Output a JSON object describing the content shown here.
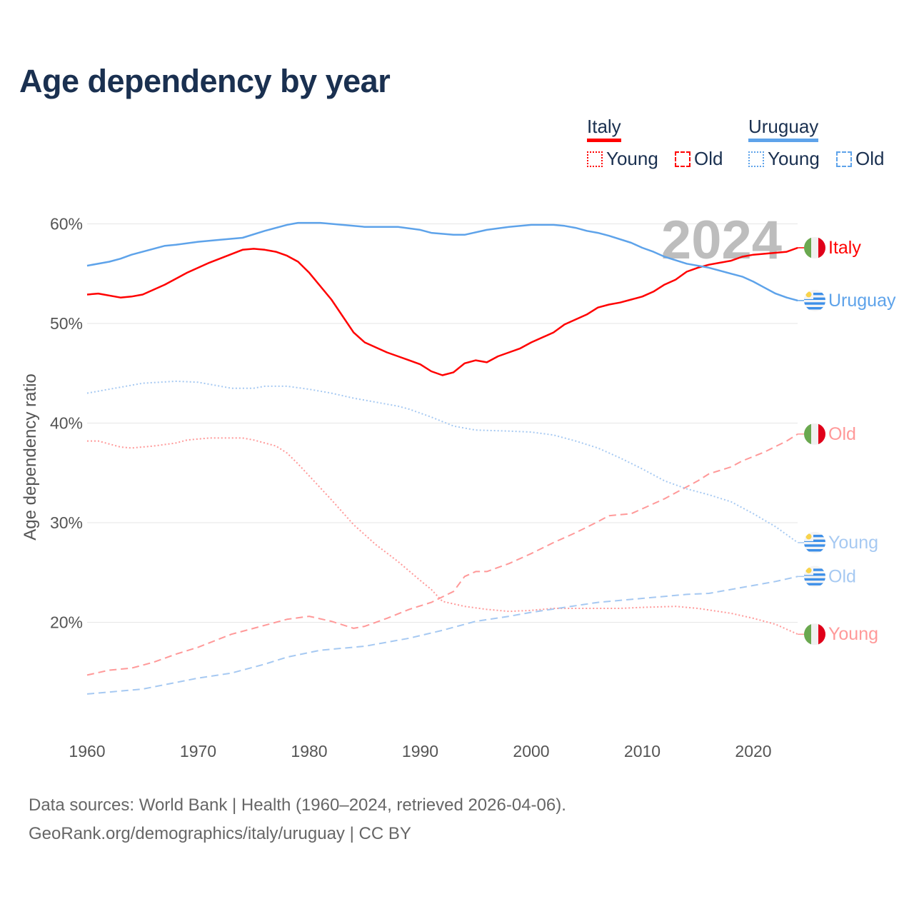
{
  "title": "Age dependency by year",
  "legend": {
    "groups": [
      {
        "country": "Italy",
        "color": "#ff0000",
        "items": [
          {
            "label": "Young",
            "style": "dotted"
          },
          {
            "label": "Old",
            "style": "dashed"
          }
        ]
      },
      {
        "country": "Uruguay",
        "color": "#5ea3ea",
        "items": [
          {
            "label": "Young",
            "style": "dotted"
          },
          {
            "label": "Old",
            "style": "dashed"
          }
        ]
      }
    ]
  },
  "year_watermark": "2024",
  "footer": {
    "line1": "Data sources: World Bank | Health (1960–2024, retrieved 2026-04-06).",
    "line2": "GeoRank.org/demographics/italy/uruguay | CC BY"
  },
  "chart_data": {
    "type": "line",
    "title": "Age dependency by year",
    "xlabel": "",
    "ylabel": "Age dependency ratio",
    "xlim": [
      1960,
      2024
    ],
    "ylim": [
      10,
      62
    ],
    "x_ticks": [
      1960,
      1970,
      1980,
      1990,
      2000,
      2010,
      2020
    ],
    "y_ticks": [
      20,
      30,
      40,
      50,
      60
    ],
    "y_tick_labels": [
      "20%",
      "30%",
      "40%",
      "50%",
      "60%"
    ],
    "grid": true,
    "legend_position": "top-right",
    "series": [
      {
        "name": "Italy",
        "end_label": "Italy",
        "country": "italy",
        "color": "#ff0000",
        "style": "solid",
        "points": [
          [
            1960,
            52.9
          ],
          [
            1961,
            53.0
          ],
          [
            1963,
            52.6
          ],
          [
            1964,
            52.7
          ],
          [
            1965,
            52.9
          ],
          [
            1967,
            53.9
          ],
          [
            1969,
            55.1
          ],
          [
            1971,
            56.1
          ],
          [
            1974,
            57.4
          ],
          [
            1975,
            57.5
          ],
          [
            1976,
            57.4
          ],
          [
            1977,
            57.2
          ],
          [
            1978,
            56.8
          ],
          [
            1979,
            56.2
          ],
          [
            1980,
            55.1
          ],
          [
            1982,
            52.4
          ],
          [
            1984,
            49.1
          ],
          [
            1985,
            48.1
          ],
          [
            1986,
            47.6
          ],
          [
            1987,
            47.1
          ],
          [
            1988,
            46.7
          ],
          [
            1989,
            46.3
          ],
          [
            1990,
            45.9
          ],
          [
            1991,
            45.2
          ],
          [
            1992,
            44.8
          ],
          [
            1993,
            45.1
          ],
          [
            1994,
            46.0
          ],
          [
            1995,
            46.3
          ],
          [
            1996,
            46.1
          ],
          [
            1997,
            46.7
          ],
          [
            1998,
            47.1
          ],
          [
            1999,
            47.5
          ],
          [
            2000,
            48.1
          ],
          [
            2002,
            49.1
          ],
          [
            2003,
            49.9
          ],
          [
            2004,
            50.4
          ],
          [
            2005,
            50.9
          ],
          [
            2006,
            51.6
          ],
          [
            2007,
            51.9
          ],
          [
            2008,
            52.1
          ],
          [
            2009,
            52.4
          ],
          [
            2010,
            52.7
          ],
          [
            2011,
            53.2
          ],
          [
            2012,
            53.9
          ],
          [
            2013,
            54.4
          ],
          [
            2014,
            55.2
          ],
          [
            2015,
            55.6
          ],
          [
            2016,
            55.9
          ],
          [
            2017,
            56.1
          ],
          [
            2018,
            56.3
          ],
          [
            2019,
            56.7
          ],
          [
            2020,
            56.9
          ],
          [
            2022,
            57.1
          ],
          [
            2023,
            57.2
          ],
          [
            2024,
            57.6
          ]
        ]
      },
      {
        "name": "Uruguay",
        "end_label": "Uruguay",
        "country": "uruguay",
        "color": "#5ea3ea",
        "style": "solid",
        "points": [
          [
            1960,
            55.8
          ],
          [
            1962,
            56.2
          ],
          [
            1963,
            56.5
          ],
          [
            1964,
            56.9
          ],
          [
            1967,
            57.8
          ],
          [
            1968,
            57.9
          ],
          [
            1970,
            58.2
          ],
          [
            1972,
            58.4
          ],
          [
            1974,
            58.6
          ],
          [
            1976,
            59.3
          ],
          [
            1978,
            59.9
          ],
          [
            1979,
            60.1
          ],
          [
            1981,
            60.1
          ],
          [
            1983,
            59.9
          ],
          [
            1985,
            59.7
          ],
          [
            1988,
            59.7
          ],
          [
            1990,
            59.4
          ],
          [
            1991,
            59.1
          ],
          [
            1993,
            58.9
          ],
          [
            1994,
            58.9
          ],
          [
            1996,
            59.4
          ],
          [
            1998,
            59.7
          ],
          [
            2000,
            59.9
          ],
          [
            2002,
            59.9
          ],
          [
            2003,
            59.8
          ],
          [
            2004,
            59.6
          ],
          [
            2005,
            59.3
          ],
          [
            2006,
            59.1
          ],
          [
            2007,
            58.8
          ],
          [
            2009,
            58.1
          ],
          [
            2010,
            57.6
          ],
          [
            2011,
            57.2
          ],
          [
            2012,
            56.7
          ],
          [
            2014,
            56.0
          ],
          [
            2016,
            55.6
          ],
          [
            2018,
            55.0
          ],
          [
            2019,
            54.7
          ],
          [
            2020,
            54.2
          ],
          [
            2021,
            53.6
          ],
          [
            2022,
            53.0
          ],
          [
            2023,
            52.6
          ],
          [
            2024,
            52.3
          ]
        ]
      },
      {
        "name": "Italy Young",
        "end_label": "Young",
        "country": "italy",
        "color": "#ff9999",
        "style": "dotted",
        "points": [
          [
            1960,
            38.2
          ],
          [
            1961,
            38.2
          ],
          [
            1963,
            37.6
          ],
          [
            1964,
            37.5
          ],
          [
            1966,
            37.7
          ],
          [
            1968,
            38.0
          ],
          [
            1969,
            38.3
          ],
          [
            1971,
            38.5
          ],
          [
            1974,
            38.5
          ],
          [
            1975,
            38.3
          ],
          [
            1977,
            37.7
          ],
          [
            1978,
            37.0
          ],
          [
            1979,
            35.9
          ],
          [
            1980,
            34.7
          ],
          [
            1982,
            32.3
          ],
          [
            1984,
            29.8
          ],
          [
            1986,
            27.8
          ],
          [
            1988,
            26.1
          ],
          [
            1990,
            24.2
          ],
          [
            1991,
            23.3
          ],
          [
            1992,
            22.1
          ],
          [
            1994,
            21.6
          ],
          [
            1996,
            21.3
          ],
          [
            1998,
            21.1
          ],
          [
            2000,
            21.2
          ],
          [
            2002,
            21.4
          ],
          [
            2005,
            21.4
          ],
          [
            2008,
            21.4
          ],
          [
            2010,
            21.5
          ],
          [
            2013,
            21.6
          ],
          [
            2015,
            21.4
          ],
          [
            2018,
            20.9
          ],
          [
            2020,
            20.4
          ],
          [
            2022,
            19.8
          ],
          [
            2024,
            18.8
          ]
        ]
      },
      {
        "name": "Italy Old",
        "end_label": "Old",
        "country": "italy",
        "color": "#ff9999",
        "style": "dashed",
        "points": [
          [
            1960,
            14.7
          ],
          [
            1962,
            15.2
          ],
          [
            1964,
            15.4
          ],
          [
            1966,
            16.0
          ],
          [
            1968,
            16.8
          ],
          [
            1970,
            17.5
          ],
          [
            1973,
            18.8
          ],
          [
            1975,
            19.4
          ],
          [
            1978,
            20.3
          ],
          [
            1980,
            20.6
          ],
          [
            1982,
            20.1
          ],
          [
            1984,
            19.4
          ],
          [
            1985,
            19.6
          ],
          [
            1987,
            20.4
          ],
          [
            1989,
            21.3
          ],
          [
            1991,
            22.0
          ],
          [
            1993,
            23.1
          ],
          [
            1994,
            24.6
          ],
          [
            1995,
            25.1
          ],
          [
            1996,
            25.1
          ],
          [
            1998,
            25.9
          ],
          [
            2000,
            26.9
          ],
          [
            2002,
            28.0
          ],
          [
            2004,
            29.0
          ],
          [
            2006,
            30.1
          ],
          [
            2007,
            30.7
          ],
          [
            2009,
            30.9
          ],
          [
            2010,
            31.4
          ],
          [
            2012,
            32.4
          ],
          [
            2013,
            33.0
          ],
          [
            2015,
            34.2
          ],
          [
            2016,
            34.9
          ],
          [
            2018,
            35.6
          ],
          [
            2019,
            36.2
          ],
          [
            2021,
            37.1
          ],
          [
            2023,
            38.2
          ],
          [
            2024,
            38.9
          ]
        ]
      },
      {
        "name": "Uruguay Young",
        "end_label": "Young",
        "country": "uruguay",
        "color": "#a6c9f2",
        "style": "dotted",
        "points": [
          [
            1960,
            43.0
          ],
          [
            1965,
            44.0
          ],
          [
            1968,
            44.2
          ],
          [
            1970,
            44.1
          ],
          [
            1973,
            43.5
          ],
          [
            1975,
            43.5
          ],
          [
            1976,
            43.7
          ],
          [
            1978,
            43.7
          ],
          [
            1980,
            43.4
          ],
          [
            1982,
            43.0
          ],
          [
            1984,
            42.5
          ],
          [
            1986,
            42.1
          ],
          [
            1988,
            41.7
          ],
          [
            1989,
            41.4
          ],
          [
            1991,
            40.6
          ],
          [
            1993,
            39.7
          ],
          [
            1995,
            39.3
          ],
          [
            1998,
            39.2
          ],
          [
            2000,
            39.1
          ],
          [
            2002,
            38.8
          ],
          [
            2004,
            38.2
          ],
          [
            2006,
            37.5
          ],
          [
            2008,
            36.5
          ],
          [
            2010,
            35.4
          ],
          [
            2012,
            34.2
          ],
          [
            2014,
            33.4
          ],
          [
            2016,
            32.8
          ],
          [
            2018,
            32.1
          ],
          [
            2020,
            30.9
          ],
          [
            2022,
            29.6
          ],
          [
            2024,
            28.0
          ]
        ]
      },
      {
        "name": "Uruguay Old",
        "end_label": "Old",
        "country": "uruguay",
        "color": "#a6c9f2",
        "style": "dashed",
        "points": [
          [
            1960,
            12.8
          ],
          [
            1965,
            13.3
          ],
          [
            1970,
            14.4
          ],
          [
            1973,
            14.9
          ],
          [
            1976,
            15.8
          ],
          [
            1978,
            16.5
          ],
          [
            1981,
            17.2
          ],
          [
            1985,
            17.6
          ],
          [
            1989,
            18.4
          ],
          [
            1992,
            19.2
          ],
          [
            1995,
            20.1
          ],
          [
            1998,
            20.6
          ],
          [
            2000,
            21.0
          ],
          [
            2003,
            21.5
          ],
          [
            2006,
            22.0
          ],
          [
            2010,
            22.4
          ],
          [
            2014,
            22.8
          ],
          [
            2016,
            22.9
          ],
          [
            2020,
            23.7
          ],
          [
            2022,
            24.1
          ],
          [
            2024,
            24.6
          ]
        ]
      }
    ]
  }
}
